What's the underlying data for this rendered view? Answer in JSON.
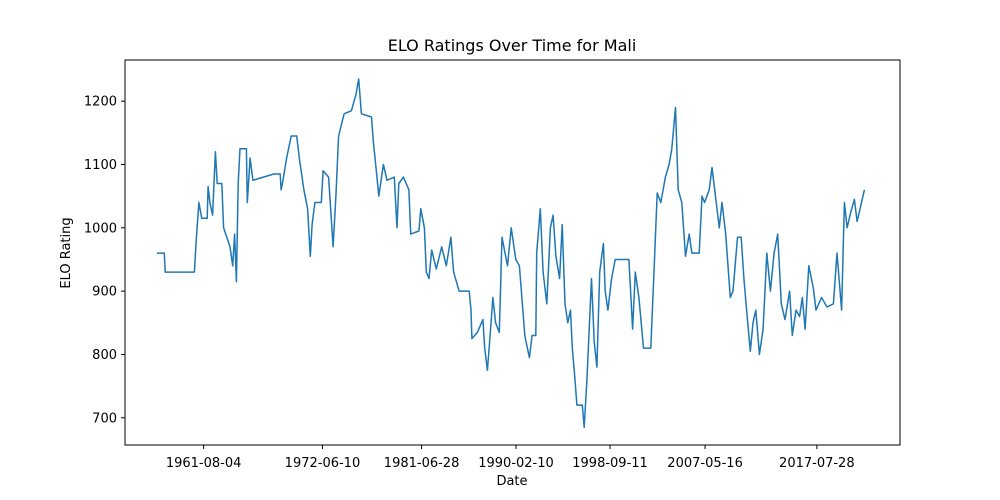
{
  "chart_data": {
    "type": "line",
    "title": "ELO Ratings Over Time for Mali",
    "xlabel": "Date",
    "ylabel": "ELO Rating",
    "x": [
      "1957-05",
      "1958-01",
      "1958-02",
      "1960-10",
      "1960-12",
      "1961-03",
      "1961-06",
      "1961-12",
      "1962-01",
      "1962-03",
      "1962-06",
      "1962-09",
      "1962-11",
      "1963-04",
      "1963-06",
      "1964-01",
      "1964-04",
      "1964-06",
      "1964-08",
      "1964-10",
      "1964-12",
      "1965-07",
      "1965-08",
      "1965-11",
      "1966-02",
      "1968-01",
      "1968-08",
      "1968-09",
      "1968-11",
      "1969-03",
      "1969-08",
      "1970-02",
      "1970-05",
      "1970-10",
      "1971-02",
      "1971-05",
      "1971-07",
      "1971-10",
      "1972-05",
      "1972-07",
      "1973-01",
      "1973-06",
      "1973-09",
      "1973-12",
      "1974-06",
      "1975-02",
      "1975-07",
      "1975-10",
      "1976-01",
      "1976-12",
      "1977-02",
      "1977-05",
      "1977-08",
      "1978-01",
      "1978-05",
      "1979-01",
      "1979-04",
      "1979-06",
      "1979-11",
      "1980-05",
      "1980-07",
      "1981-04",
      "1981-06",
      "1981-10",
      "1981-12",
      "1982-03",
      "1982-06",
      "1982-11",
      "1983-05",
      "1983-10",
      "1984-03",
      "1984-06",
      "1984-12",
      "1985-11",
      "1986-01",
      "1986-02",
      "1986-08",
      "1987-02",
      "1987-04",
      "1987-07",
      "1987-10",
      "1988-01",
      "1988-04",
      "1988-08",
      "1988-11",
      "1989-05",
      "1989-09",
      "1990-02",
      "1990-06",
      "1990-12",
      "1991-05",
      "1991-08",
      "1991-12",
      "1992-01",
      "1992-05",
      "1992-08",
      "1992-12",
      "1993-04",
      "1993-07",
      "1993-10",
      "1994-02",
      "1994-05",
      "1994-08",
      "1994-11",
      "1995-02",
      "1995-04",
      "1995-07",
      "1995-09",
      "1996-03",
      "1996-05",
      "1996-08",
      "1997-01",
      "1997-04",
      "1997-07",
      "1997-10",
      "1998-02",
      "1998-04",
      "1998-07",
      "1998-11",
      "1999-03",
      "2000-06",
      "2000-10",
      "2001-01",
      "2001-05",
      "2001-10",
      "2002-06",
      "2002-10",
      "2003-01",
      "2003-05",
      "2003-10",
      "2004-02",
      "2004-05",
      "2004-09",
      "2004-12",
      "2005-04",
      "2005-08",
      "2005-12",
      "2006-03",
      "2006-11",
      "2007-02",
      "2007-05",
      "2007-10",
      "2008-01",
      "2008-04",
      "2008-09",
      "2008-12",
      "2009-04",
      "2009-09",
      "2009-12",
      "2010-05",
      "2010-09",
      "2010-12",
      "2011-03",
      "2011-07",
      "2011-10",
      "2012-01",
      "2012-05",
      "2012-09",
      "2013-01",
      "2013-05",
      "2013-09",
      "2014-01",
      "2014-05",
      "2014-09",
      "2015-02",
      "2015-05",
      "2015-09",
      "2016-01",
      "2016-04",
      "2016-07",
      "2016-11",
      "2017-04",
      "2017-07",
      "2018-01",
      "2018-07",
      "2019-02",
      "2019-06",
      "2019-11",
      "2020-02",
      "2020-05",
      "2020-09",
      "2021-01",
      "2021-04",
      "2021-08",
      "2021-12"
    ],
    "series": [
      {
        "name": "Mali",
        "color": "#1f77b4",
        "values": [
          960,
          960,
          930,
          930,
          980,
          1040,
          1015,
          1015,
          1065,
          1040,
          1020,
          1120,
          1070,
          1070,
          1000,
          970,
          940,
          990,
          915,
          1070,
          1125,
          1125,
          1040,
          1110,
          1075,
          1085,
          1085,
          1060,
          1075,
          1110,
          1145,
          1145,
          1110,
          1060,
          1030,
          955,
          1005,
          1040,
          1040,
          1090,
          1080,
          970,
          1050,
          1145,
          1180,
          1185,
          1210,
          1235,
          1180,
          1175,
          1135,
          1095,
          1050,
          1100,
          1075,
          1080,
          1000,
          1070,
          1080,
          1060,
          990,
          995,
          1030,
          1000,
          930,
          920,
          965,
          935,
          970,
          940,
          985,
          930,
          900,
          900,
          870,
          825,
          835,
          855,
          810,
          775,
          830,
          890,
          850,
          835,
          985,
          940,
          1000,
          950,
          940,
          830,
          795,
          830,
          830,
          960,
          1030,
          930,
          880,
          1000,
          1020,
          955,
          920,
          1005,
          880,
          850,
          870,
          810,
          760,
          720,
          720,
          685,
          760,
          920,
          820,
          780,
          930,
          975,
          900,
          870,
          920,
          950,
          950,
          840,
          930,
          890,
          810,
          810,
          950,
          1055,
          1040,
          1080,
          1100,
          1125,
          1190,
          1060,
          1040,
          955,
          990,
          960,
          960,
          1050,
          1040,
          1060,
          1095,
          1060,
          1000,
          1040,
          990,
          890,
          900,
          985,
          985,
          920,
          870,
          805,
          850,
          870,
          800,
          840,
          960,
          900,
          960,
          990,
          880,
          855,
          900,
          830,
          870,
          860,
          890,
          840,
          940,
          905,
          870,
          890,
          875,
          880,
          960,
          870,
          1040,
          1000,
          1025,
          1045,
          1010,
          1035,
          1060
        ]
      }
    ],
    "xlim": [
      "1954-06-01",
      "2025-03-01"
    ],
    "xticks": [
      "1961-08-04",
      "1972-06-10",
      "1981-06-28",
      "1990-02-10",
      "1998-09-11",
      "2007-05-16",
      "2017-07-28"
    ],
    "ylim": [
      657,
      1265
    ],
    "yticks": [
      700,
      800,
      900,
      1000,
      1100,
      1200
    ]
  }
}
